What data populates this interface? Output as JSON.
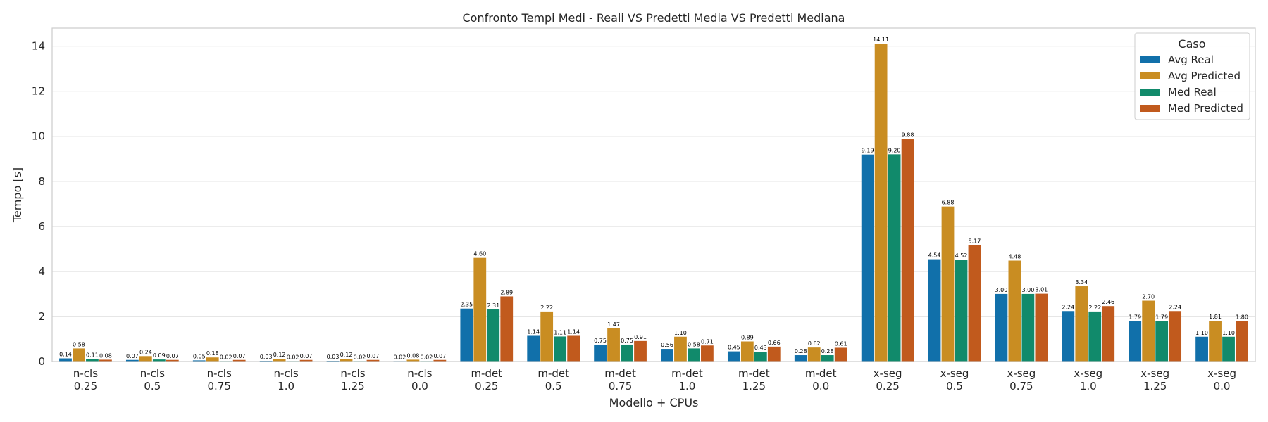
{
  "chart_data": {
    "type": "bar",
    "title": "Confronto Tempi Medi - Reali VS Predetti Media VS Predetti Mediana",
    "xlabel": "Modello + CPUs",
    "ylabel": "Tempo [s]",
    "ylim": [
      0,
      14.8
    ],
    "yticks": [
      0,
      2,
      4,
      6,
      8,
      10,
      12,
      14
    ],
    "ytick_labels": [
      "0",
      "2",
      "4",
      "6",
      "8",
      "10",
      "12",
      "14"
    ],
    "grid": true,
    "legend_title": "Caso",
    "legend_position": "top-right",
    "categories": [
      [
        "n-cls",
        "0.25"
      ],
      [
        "n-cls",
        "0.5"
      ],
      [
        "n-cls",
        "0.75"
      ],
      [
        "n-cls",
        "1.0"
      ],
      [
        "n-cls",
        "1.25"
      ],
      [
        "n-cls",
        "0.0"
      ],
      [
        "m-det",
        "0.25"
      ],
      [
        "m-det",
        "0.5"
      ],
      [
        "m-det",
        "0.75"
      ],
      [
        "m-det",
        "1.0"
      ],
      [
        "m-det",
        "1.25"
      ],
      [
        "m-det",
        "0.0"
      ],
      [
        "x-seg",
        "0.25"
      ],
      [
        "x-seg",
        "0.5"
      ],
      [
        "x-seg",
        "0.75"
      ],
      [
        "x-seg",
        "1.0"
      ],
      [
        "x-seg",
        "1.25"
      ],
      [
        "x-seg",
        "0.0"
      ]
    ],
    "series": [
      {
        "name": "Avg Real",
        "color": "#1170aa",
        "values": [
          0.14,
          0.07,
          0.05,
          0.03,
          0.03,
          0.02,
          2.35,
          1.14,
          0.75,
          0.56,
          0.45,
          0.28,
          9.19,
          4.54,
          3.0,
          2.24,
          1.79,
          1.1
        ],
        "labels": [
          "0.14",
          "0.07",
          "0.05",
          "0.03",
          "0.03",
          "0.02",
          "2.35",
          "1.14",
          "0.75",
          "0.56",
          "0.45",
          "0.28",
          "9.19",
          "4.54",
          "3.00",
          "2.24",
          "1.79",
          "1.10"
        ]
      },
      {
        "name": "Avg Predicted",
        "color": "#c98d22",
        "values": [
          0.58,
          0.24,
          0.18,
          0.12,
          0.12,
          0.08,
          4.6,
          2.22,
          1.47,
          1.1,
          0.89,
          0.62,
          14.11,
          6.88,
          4.48,
          3.34,
          2.7,
          1.81
        ],
        "labels": [
          "0.58",
          "0.24",
          "0.18",
          "0.12",
          "0.12",
          "0.08",
          "4.60",
          "2.22",
          "1.47",
          "1.10",
          "0.89",
          "0.62",
          "14.11",
          "6.88",
          "4.48",
          "3.34",
          "2.70",
          "1.81"
        ]
      },
      {
        "name": "Med Real",
        "color": "#118a6b",
        "values": [
          0.11,
          0.09,
          0.02,
          0.02,
          0.02,
          0.02,
          2.31,
          1.11,
          0.75,
          0.58,
          0.43,
          0.28,
          9.2,
          4.52,
          3.0,
          2.22,
          1.79,
          1.1
        ],
        "labels": [
          "0.11",
          "0.09",
          "0.02",
          "0.02",
          "0.02",
          "0.02",
          "2.31",
          "1.11",
          "0.75",
          "0.58",
          "0.43",
          "0.28",
          "9.20",
          "4.52",
          "3.00",
          "2.22",
          "1.79",
          "1.10"
        ]
      },
      {
        "name": "Med Predicted",
        "color": "#c15a1d",
        "values": [
          0.08,
          0.07,
          0.07,
          0.07,
          0.07,
          0.07,
          2.89,
          1.14,
          0.91,
          0.71,
          0.66,
          0.61,
          9.88,
          5.17,
          3.01,
          2.46,
          2.24,
          1.8
        ],
        "labels": [
          "0.08",
          "0.07",
          "0.07",
          "0.07",
          "0.07",
          "0.07",
          "2.89",
          "1.14",
          "0.91",
          "0.71",
          "0.66",
          "0.61",
          "9.88",
          "5.17",
          "3.01",
          "2.46",
          "2.24",
          "1.80"
        ]
      }
    ]
  }
}
